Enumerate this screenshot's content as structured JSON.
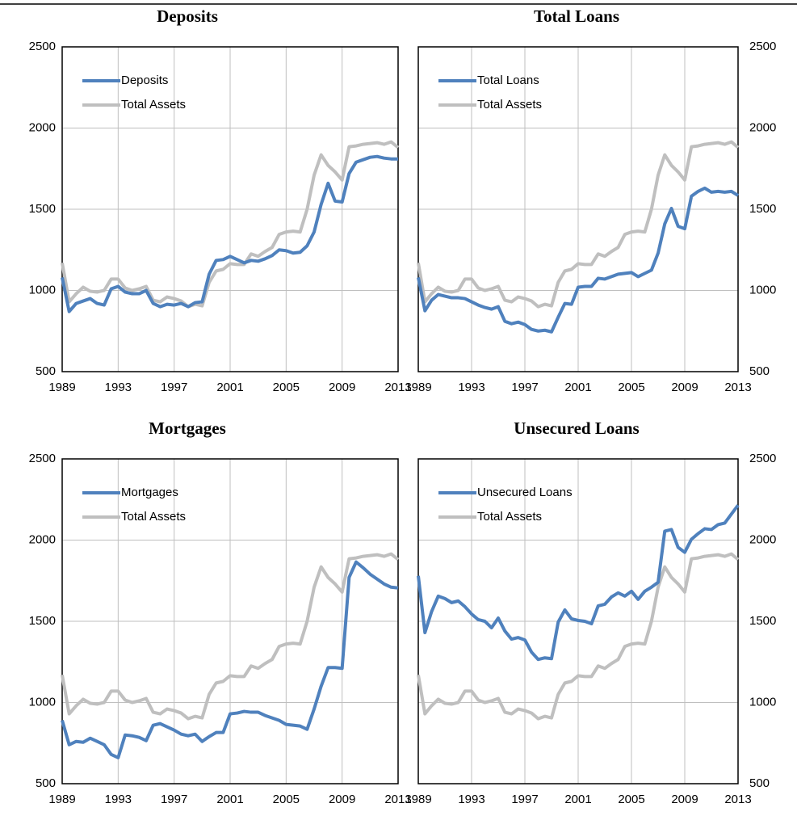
{
  "chart_data": [
    {
      "type": "line",
      "title": "Deposits",
      "x": [
        1989,
        1989.5,
        1990,
        1990.5,
        1991,
        1991.5,
        1992,
        1992.5,
        1993,
        1993.5,
        1994,
        1994.5,
        1995,
        1995.5,
        1996,
        1996.5,
        1997,
        1997.5,
        1998,
        1998.5,
        1999,
        1999.5,
        2000,
        2000.5,
        2001,
        2001.5,
        2002,
        2002.5,
        2003,
        2003.5,
        2004,
        2004.5,
        2005,
        2005.5,
        2006,
        2006.5,
        2007,
        2007.5,
        2008,
        2008.5,
        2009,
        2009.5,
        2010,
        2010.5,
        2011,
        2011.5,
        2012,
        2012.5,
        2013
      ],
      "series": [
        {
          "name": "Deposits",
          "color": "#4f81bd",
          "values": [
            1080,
            870,
            920,
            935,
            950,
            920,
            910,
            1010,
            1025,
            990,
            980,
            980,
            1000,
            920,
            900,
            915,
            910,
            920,
            900,
            925,
            930,
            1100,
            1185,
            1190,
            1210,
            1190,
            1170,
            1185,
            1180,
            1195,
            1215,
            1250,
            1245,
            1230,
            1235,
            1275,
            1360,
            1530,
            1660,
            1550,
            1545,
            1720,
            1790,
            1805,
            1820,
            1825,
            1815,
            1810,
            1810
          ]
        },
        {
          "name": "Total Assets",
          "color": "#bfbfbf",
          "values": [
            1170,
            930,
            980,
            1020,
            995,
            990,
            1000,
            1070,
            1070,
            1015,
            1000,
            1010,
            1025,
            940,
            930,
            960,
            950,
            935,
            900,
            915,
            905,
            1050,
            1120,
            1130,
            1165,
            1160,
            1160,
            1225,
            1210,
            1240,
            1265,
            1345,
            1360,
            1365,
            1360,
            1500,
            1710,
            1835,
            1770,
            1730,
            1680,
            1885,
            1890,
            1900,
            1905,
            1910,
            1900,
            1915,
            1880
          ]
        }
      ],
      "xlim": [
        1989,
        2013
      ],
      "xticks": [
        1989,
        1993,
        1997,
        2001,
        2005,
        2009,
        2013
      ],
      "ylim": [
        500,
        2500
      ],
      "yticks": [
        500,
        1000,
        1500,
        2000,
        2500
      ],
      "grid": true,
      "y_axis_side": "left",
      "legend_position": "upper left"
    },
    {
      "type": "line",
      "title": "Total Loans",
      "x": [
        1989,
        1989.5,
        1990,
        1990.5,
        1991,
        1991.5,
        1992,
        1992.5,
        1993,
        1993.5,
        1994,
        1994.5,
        1995,
        1995.5,
        1996,
        1996.5,
        1997,
        1997.5,
        1998,
        1998.5,
        1999,
        1999.5,
        2000,
        2000.5,
        2001,
        2001.5,
        2002,
        2002.5,
        2003,
        2003.5,
        2004,
        2004.5,
        2005,
        2005.5,
        2006,
        2006.5,
        2007,
        2007.5,
        2008,
        2008.5,
        2009,
        2009.5,
        2010,
        2010.5,
        2011,
        2011.5,
        2012,
        2012.5,
        2013
      ],
      "series": [
        {
          "name": "Total Loans",
          "color": "#4f81bd",
          "values": [
            1080,
            875,
            940,
            975,
            965,
            955,
            955,
            950,
            930,
            910,
            895,
            885,
            900,
            810,
            795,
            805,
            790,
            760,
            750,
            755,
            745,
            835,
            920,
            915,
            1020,
            1025,
            1025,
            1075,
            1070,
            1085,
            1100,
            1105,
            1110,
            1085,
            1105,
            1125,
            1230,
            1410,
            1505,
            1395,
            1380,
            1580,
            1610,
            1630,
            1605,
            1610,
            1605,
            1610,
            1585
          ]
        },
        {
          "name": "Total Assets",
          "color": "#bfbfbf",
          "values": [
            1170,
            930,
            980,
            1020,
            995,
            990,
            1000,
            1070,
            1070,
            1015,
            1000,
            1010,
            1025,
            940,
            930,
            960,
            950,
            935,
            900,
            915,
            905,
            1050,
            1120,
            1130,
            1165,
            1160,
            1160,
            1225,
            1210,
            1240,
            1265,
            1345,
            1360,
            1365,
            1360,
            1500,
            1710,
            1835,
            1770,
            1730,
            1680,
            1885,
            1890,
            1900,
            1905,
            1910,
            1900,
            1915,
            1880
          ]
        }
      ],
      "xlim": [
        1989,
        2013
      ],
      "xticks": [
        1989,
        1993,
        1997,
        2001,
        2005,
        2009,
        2013
      ],
      "ylim": [
        500,
        2500
      ],
      "yticks": [
        500,
        1000,
        1500,
        2000,
        2500
      ],
      "grid": true,
      "y_axis_side": "right",
      "legend_position": "upper left"
    },
    {
      "type": "line",
      "title": "Mortgages",
      "x": [
        1989,
        1989.5,
        1990,
        1990.5,
        1991,
        1991.5,
        1992,
        1992.5,
        1993,
        1993.5,
        1994,
        1994.5,
        1995,
        1995.5,
        1996,
        1996.5,
        1997,
        1997.5,
        1998,
        1998.5,
        1999,
        1999.5,
        2000,
        2000.5,
        2001,
        2001.5,
        2002,
        2002.5,
        2003,
        2003.5,
        2004,
        2004.5,
        2005,
        2005.5,
        2006,
        2006.5,
        2007,
        2007.5,
        2008,
        2008.5,
        2009,
        2009.5,
        2010,
        2010.5,
        2011,
        2011.5,
        2012,
        2012.5,
        2013
      ],
      "series": [
        {
          "name": "Mortgages",
          "color": "#4f81bd",
          "values": [
            890,
            740,
            760,
            755,
            780,
            760,
            740,
            680,
            660,
            800,
            795,
            785,
            765,
            860,
            870,
            850,
            830,
            805,
            795,
            805,
            760,
            790,
            815,
            815,
            930,
            935,
            945,
            940,
            940,
            920,
            905,
            890,
            865,
            860,
            855,
            835,
            960,
            1100,
            1215,
            1215,
            1210,
            1770,
            1865,
            1830,
            1790,
            1760,
            1730,
            1710,
            1705
          ]
        },
        {
          "name": "Total Assets",
          "color": "#bfbfbf",
          "values": [
            1170,
            930,
            980,
            1020,
            995,
            990,
            1000,
            1070,
            1070,
            1015,
            1000,
            1010,
            1025,
            940,
            930,
            960,
            950,
            935,
            900,
            915,
            905,
            1050,
            1120,
            1130,
            1165,
            1160,
            1160,
            1225,
            1210,
            1240,
            1265,
            1345,
            1360,
            1365,
            1360,
            1500,
            1710,
            1835,
            1770,
            1730,
            1680,
            1885,
            1890,
            1900,
            1905,
            1910,
            1900,
            1915,
            1880
          ]
        }
      ],
      "xlim": [
        1989,
        2013
      ],
      "xticks": [
        1989,
        1993,
        1997,
        2001,
        2005,
        2009,
        2013
      ],
      "ylim": [
        500,
        2500
      ],
      "yticks": [
        500,
        1000,
        1500,
        2000,
        2500
      ],
      "grid": true,
      "y_axis_side": "left",
      "legend_position": "upper left"
    },
    {
      "type": "line",
      "title": "Unsecured Loans",
      "x": [
        1989,
        1989.5,
        1990,
        1990.5,
        1991,
        1991.5,
        1992,
        1992.5,
        1993,
        1993.5,
        1994,
        1994.5,
        1995,
        1995.5,
        1996,
        1996.5,
        1997,
        1997.5,
        1998,
        1998.5,
        1999,
        1999.5,
        2000,
        2000.5,
        2001,
        2001.5,
        2002,
        2002.5,
        2003,
        2003.5,
        2004,
        2004.5,
        2005,
        2005.5,
        2006,
        2006.5,
        2007,
        2007.5,
        2008,
        2008.5,
        2009,
        2009.5,
        2010,
        2010.5,
        2011,
        2011.5,
        2012,
        2012.5,
        2013
      ],
      "series": [
        {
          "name": "Unsecured Loans",
          "color": "#4f81bd",
          "values": [
            1780,
            1430,
            1560,
            1655,
            1640,
            1615,
            1625,
            1590,
            1545,
            1510,
            1500,
            1460,
            1520,
            1440,
            1390,
            1400,
            1385,
            1310,
            1265,
            1275,
            1270,
            1495,
            1570,
            1515,
            1505,
            1500,
            1485,
            1595,
            1605,
            1650,
            1675,
            1655,
            1685,
            1635,
            1685,
            1710,
            1740,
            2055,
            2065,
            1955,
            1925,
            2005,
            2040,
            2070,
            2065,
            2095,
            2105,
            2160,
            2215
          ]
        },
        {
          "name": "Total Assets",
          "color": "#bfbfbf",
          "values": [
            1170,
            930,
            980,
            1020,
            995,
            990,
            1000,
            1070,
            1070,
            1015,
            1000,
            1010,
            1025,
            940,
            930,
            960,
            950,
            935,
            900,
            915,
            905,
            1050,
            1120,
            1130,
            1165,
            1160,
            1160,
            1225,
            1210,
            1240,
            1265,
            1345,
            1360,
            1365,
            1360,
            1500,
            1710,
            1835,
            1770,
            1730,
            1680,
            1885,
            1890,
            1900,
            1905,
            1910,
            1900,
            1915,
            1880
          ]
        }
      ],
      "xlim": [
        1989,
        2013
      ],
      "xticks": [
        1989,
        1993,
        1997,
        2001,
        2005,
        2009,
        2013
      ],
      "ylim": [
        500,
        2500
      ],
      "yticks": [
        500,
        1000,
        1500,
        2000,
        2500
      ],
      "grid": true,
      "y_axis_side": "right",
      "legend_position": "upper left"
    }
  ]
}
